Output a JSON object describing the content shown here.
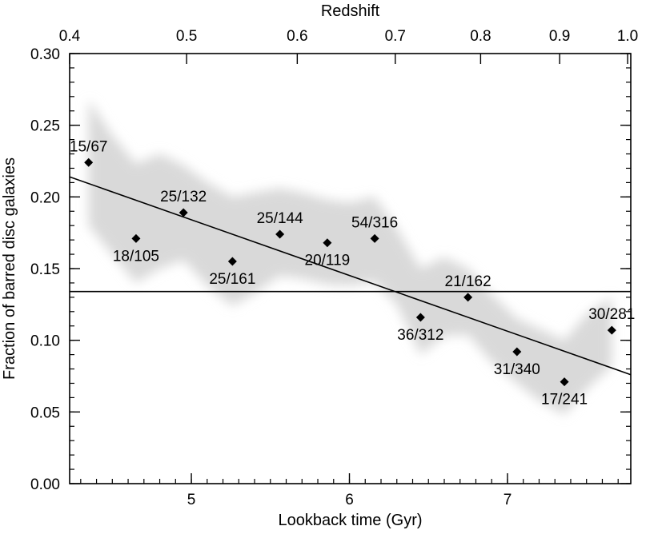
{
  "chart_data": {
    "type": "scatter",
    "xlabel": "Lookback time (Gyr)",
    "ylabel": "Fraction of barred disc galaxies",
    "x2label": "Redshift",
    "xlim": [
      4.23,
      7.78
    ],
    "ylim": [
      0.0,
      0.3
    ],
    "grid": false,
    "x_ticks": [
      5,
      6,
      7
    ],
    "x_tick_labels": [
      "5",
      "6",
      "7"
    ],
    "x_minor_step": 0.1,
    "y_ticks": [
      0.0,
      0.05,
      0.1,
      0.15,
      0.2,
      0.25,
      0.3
    ],
    "y_tick_labels": [
      "0.00",
      "0.05",
      "0.10",
      "0.15",
      "0.20",
      "0.25",
      "0.30"
    ],
    "y_minor_step": 0.01,
    "top_ticks": [
      {
        "x": 4.23,
        "label": "0.4"
      },
      {
        "x": 4.97,
        "label": "0.5"
      },
      {
        "x": 5.67,
        "label": "0.6"
      },
      {
        "x": 6.29,
        "label": "0.7"
      },
      {
        "x": 6.83,
        "label": "0.8"
      },
      {
        "x": 7.33,
        "label": "0.9"
      },
      {
        "x": 7.76,
        "label": "1.0"
      }
    ],
    "points": [
      {
        "x": 4.35,
        "y": 0.224,
        "label": "15/67",
        "label_pos": "above"
      },
      {
        "x": 4.65,
        "y": 0.171,
        "label": "18/105",
        "label_pos": "below"
      },
      {
        "x": 4.95,
        "y": 0.189,
        "label": "25/132",
        "label_pos": "above"
      },
      {
        "x": 5.26,
        "y": 0.155,
        "label": "25/161",
        "label_pos": "below"
      },
      {
        "x": 5.56,
        "y": 0.174,
        "label": "25/144",
        "label_pos": "above"
      },
      {
        "x": 5.86,
        "y": 0.168,
        "label": "20/119",
        "label_pos": "below"
      },
      {
        "x": 6.16,
        "y": 0.171,
        "label": "54/316",
        "label_pos": "above"
      },
      {
        "x": 6.45,
        "y": 0.116,
        "label": "36/312",
        "label_pos": "below"
      },
      {
        "x": 6.75,
        "y": 0.13,
        "label": "21/162",
        "label_pos": "above"
      },
      {
        "x": 7.06,
        "y": 0.092,
        "label": "31/340",
        "label_pos": "below"
      },
      {
        "x": 7.36,
        "y": 0.071,
        "label": "17/241",
        "label_pos": "below"
      },
      {
        "x": 7.66,
        "y": 0.107,
        "label": "30/281",
        "label_pos": "above"
      }
    ],
    "fit_line": {
      "x": [
        4.23,
        7.78
      ],
      "y": [
        0.214,
        0.076
      ]
    },
    "mean_line": {
      "y": 0.134
    },
    "band": {
      "upper": [
        [
          4.35,
          0.268
        ],
        [
          4.5,
          0.243
        ],
        [
          4.65,
          0.223
        ],
        [
          4.8,
          0.23
        ],
        [
          4.95,
          0.222
        ],
        [
          5.1,
          0.21
        ],
        [
          5.26,
          0.2
        ],
        [
          5.4,
          0.203
        ],
        [
          5.56,
          0.206
        ],
        [
          5.7,
          0.203
        ],
        [
          5.86,
          0.198
        ],
        [
          6.0,
          0.196
        ],
        [
          6.16,
          0.2
        ],
        [
          6.3,
          0.178
        ],
        [
          6.45,
          0.15
        ],
        [
          6.6,
          0.158
        ],
        [
          6.75,
          0.15
        ],
        [
          6.9,
          0.132
        ],
        [
          7.06,
          0.115
        ],
        [
          7.2,
          0.108
        ],
        [
          7.36,
          0.1
        ],
        [
          7.5,
          0.118
        ],
        [
          7.66,
          0.13
        ]
      ],
      "lower": [
        [
          7.66,
          0.082
        ],
        [
          7.5,
          0.066
        ],
        [
          7.36,
          0.048
        ],
        [
          7.2,
          0.058
        ],
        [
          7.06,
          0.07
        ],
        [
          6.9,
          0.085
        ],
        [
          6.75,
          0.104
        ],
        [
          6.6,
          0.103
        ],
        [
          6.45,
          0.09
        ],
        [
          6.3,
          0.125
        ],
        [
          6.16,
          0.141
        ],
        [
          6.0,
          0.138
        ],
        [
          5.86,
          0.139
        ],
        [
          5.7,
          0.143
        ],
        [
          5.56,
          0.145
        ],
        [
          5.4,
          0.133
        ],
        [
          5.26,
          0.124
        ],
        [
          5.1,
          0.138
        ],
        [
          4.95,
          0.156
        ],
        [
          4.8,
          0.15
        ],
        [
          4.65,
          0.14
        ],
        [
          4.5,
          0.16
        ],
        [
          4.35,
          0.18
        ]
      ]
    },
    "colors": {
      "band": "#d9d9d9",
      "marker": "#000000",
      "line": "#000000"
    }
  }
}
